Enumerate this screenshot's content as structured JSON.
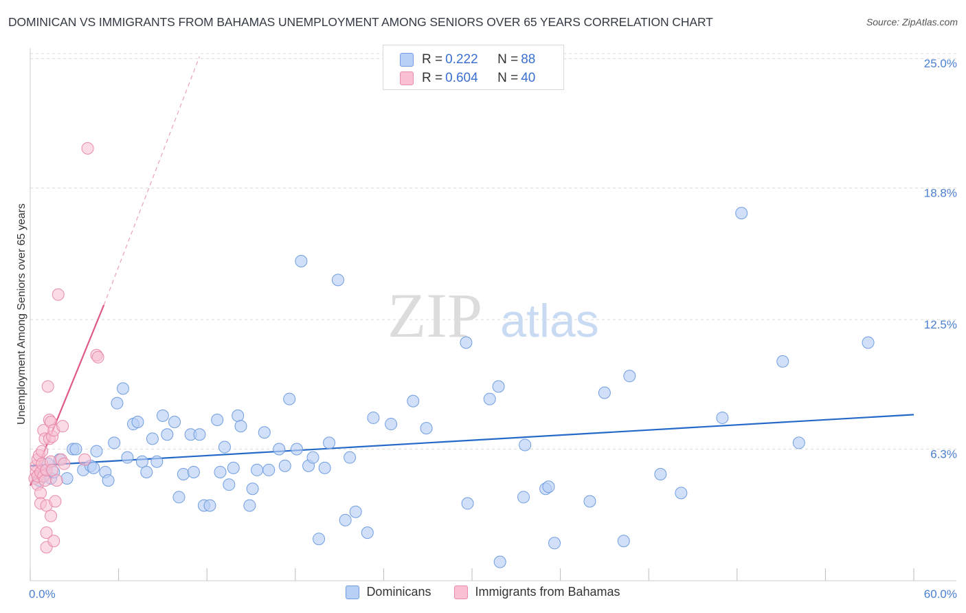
{
  "header": {
    "title": "DOMINICAN VS IMMIGRANTS FROM BAHAMAS UNEMPLOYMENT AMONG SENIORS OVER 65 YEARS CORRELATION CHART",
    "source": "Source: ZipAtlas.com"
  },
  "watermark": {
    "zip": "ZIP",
    "atlas": "atlas"
  },
  "legend_top": {
    "rows": [
      {
        "r_label": "R = ",
        "r_value": "0.222",
        "n_label": "N = ",
        "n_value": "88"
      },
      {
        "r_label": "R = ",
        "r_value": "0.604",
        "n_label": "N = ",
        "n_value": "40"
      }
    ]
  },
  "legend_bottom": {
    "items": [
      {
        "label": "Dominicans"
      },
      {
        "label": "Immigrants from Bahamas"
      }
    ]
  },
  "colors": {
    "blue_fill": "#b8d0f5",
    "blue_stroke": "#6f9de0",
    "blue_line": "#2469c8",
    "pink_fill": "#f8c0d2",
    "pink_stroke": "#e88aaa",
    "pink_line": "#e0578a",
    "grid": "#d9d9d9",
    "tick_text": "#4a7fd1"
  },
  "chart_data": {
    "type": "scatter",
    "title": "DOMINICAN VS IMMIGRANTS FROM BAHAMAS UNEMPLOYMENT AMONG SENIORS OVER 65 YEARS CORRELATION CHART",
    "xlabel": "",
    "ylabel": "Unemployment Among Seniors over 65 years",
    "xlim": [
      0,
      60
    ],
    "ylim": [
      0,
      25.5
    ],
    "x_tick_labels": [
      "0.0%",
      "60.0%"
    ],
    "y_ticks": [
      6.3,
      12.5,
      18.8,
      25.0
    ],
    "y_tick_labels": [
      "6.3%",
      "12.5%",
      "18.8%",
      "25.0%"
    ],
    "grid": true,
    "legend_position": "top-center",
    "series": [
      {
        "name": "Dominicans",
        "r": 0.222,
        "n": 88,
        "trend": {
          "x0": 0,
          "y0": 5.5,
          "x1": 60,
          "y1": 7.95
        },
        "points": [
          [
            0.6,
            4.8
          ],
          [
            0.8,
            5.0
          ],
          [
            1.0,
            5.3
          ],
          [
            1.2,
            5.6
          ],
          [
            1.4,
            4.9
          ],
          [
            1.6,
            5.2
          ],
          [
            2.0,
            5.8
          ],
          [
            2.5,
            4.9
          ],
          [
            2.9,
            6.3
          ],
          [
            3.1,
            6.3
          ],
          [
            3.6,
            5.3
          ],
          [
            4.1,
            5.5
          ],
          [
            4.3,
            5.4
          ],
          [
            4.5,
            6.2
          ],
          [
            5.1,
            5.2
          ],
          [
            5.3,
            4.8
          ],
          [
            5.7,
            6.6
          ],
          [
            5.9,
            8.5
          ],
          [
            6.3,
            9.2
          ],
          [
            6.6,
            5.9
          ],
          [
            7.0,
            7.5
          ],
          [
            7.3,
            7.6
          ],
          [
            7.6,
            5.7
          ],
          [
            7.9,
            5.2
          ],
          [
            8.3,
            6.8
          ],
          [
            8.6,
            5.7
          ],
          [
            9.0,
            7.9
          ],
          [
            9.3,
            7.0
          ],
          [
            9.8,
            7.6
          ],
          [
            10.1,
            4.0
          ],
          [
            10.4,
            5.1
          ],
          [
            10.9,
            7.0
          ],
          [
            11.1,
            5.2
          ],
          [
            11.5,
            7.0
          ],
          [
            11.8,
            3.6
          ],
          [
            12.2,
            3.6
          ],
          [
            12.7,
            7.7
          ],
          [
            12.9,
            5.2
          ],
          [
            13.2,
            6.4
          ],
          [
            13.5,
            4.6
          ],
          [
            13.8,
            5.4
          ],
          [
            14.1,
            7.9
          ],
          [
            14.3,
            7.4
          ],
          [
            15.1,
            4.4
          ],
          [
            15.4,
            5.3
          ],
          [
            14.9,
            3.6
          ],
          [
            15.9,
            7.1
          ],
          [
            16.2,
            5.3
          ],
          [
            16.9,
            6.3
          ],
          [
            17.3,
            5.5
          ],
          [
            17.6,
            8.7
          ],
          [
            18.1,
            6.3
          ],
          [
            18.4,
            15.3
          ],
          [
            18.9,
            5.5
          ],
          [
            19.2,
            5.9
          ],
          [
            19.6,
            2.0
          ],
          [
            20.0,
            5.4
          ],
          [
            20.3,
            6.6
          ],
          [
            20.9,
            14.4
          ],
          [
            21.4,
            2.9
          ],
          [
            21.7,
            5.9
          ],
          [
            22.1,
            3.3
          ],
          [
            22.9,
            2.3
          ],
          [
            23.3,
            7.8
          ],
          [
            24.5,
            7.5
          ],
          [
            26.0,
            8.6
          ],
          [
            26.9,
            7.3
          ],
          [
            29.6,
            11.4
          ],
          [
            29.7,
            3.7
          ],
          [
            31.2,
            8.7
          ],
          [
            31.8,
            9.3
          ],
          [
            31.9,
            0.9
          ],
          [
            33.5,
            4.0
          ],
          [
            33.6,
            6.5
          ],
          [
            35.0,
            4.4
          ],
          [
            35.2,
            4.5
          ],
          [
            35.6,
            1.8
          ],
          [
            38.0,
            3.8
          ],
          [
            39.0,
            9.0
          ],
          [
            40.3,
            1.9
          ],
          [
            40.7,
            9.8
          ],
          [
            42.8,
            5.1
          ],
          [
            44.2,
            4.2
          ],
          [
            47.0,
            7.8
          ],
          [
            48.3,
            17.6
          ],
          [
            51.1,
            10.5
          ],
          [
            52.2,
            6.6
          ],
          [
            56.9,
            11.4
          ]
        ]
      },
      {
        "name": "Immigrants from Bahamas",
        "r": 0.604,
        "n": 40,
        "trend": {
          "x0": 0,
          "y0": 4.55,
          "x1": 5.0,
          "y1": 13.2
        },
        "trend_extension": {
          "x0": 5.0,
          "y0": 13.2,
          "x1": 11.5,
          "y1": 25.1
        },
        "points": [
          [
            0.3,
            4.9
          ],
          [
            0.4,
            5.2
          ],
          [
            0.4,
            5.5
          ],
          [
            0.5,
            4.6
          ],
          [
            0.5,
            5.0
          ],
          [
            0.5,
            5.8
          ],
          [
            0.6,
            6.0
          ],
          [
            0.7,
            5.2
          ],
          [
            0.7,
            4.2
          ],
          [
            0.7,
            3.7
          ],
          [
            0.8,
            5.6
          ],
          [
            0.8,
            6.2
          ],
          [
            0.9,
            5.0
          ],
          [
            0.9,
            7.2
          ],
          [
            1.0,
            4.8
          ],
          [
            1.0,
            6.8
          ],
          [
            1.1,
            5.3
          ],
          [
            1.1,
            3.6
          ],
          [
            1.1,
            1.6
          ],
          [
            1.1,
            2.3
          ],
          [
            1.2,
            9.3
          ],
          [
            1.3,
            7.7
          ],
          [
            1.3,
            6.8
          ],
          [
            1.4,
            5.7
          ],
          [
            1.4,
            3.1
          ],
          [
            1.4,
            7.6
          ],
          [
            1.5,
            5.3
          ],
          [
            1.5,
            6.9
          ],
          [
            1.6,
            7.2
          ],
          [
            1.6,
            1.9
          ],
          [
            1.7,
            3.8
          ],
          [
            1.8,
            4.8
          ],
          [
            1.9,
            13.7
          ],
          [
            2.1,
            5.8
          ],
          [
            2.2,
            7.4
          ],
          [
            2.3,
            5.6
          ],
          [
            3.7,
            5.8
          ],
          [
            3.9,
            20.7
          ],
          [
            4.5,
            10.8
          ],
          [
            4.6,
            10.7
          ]
        ]
      }
    ]
  }
}
